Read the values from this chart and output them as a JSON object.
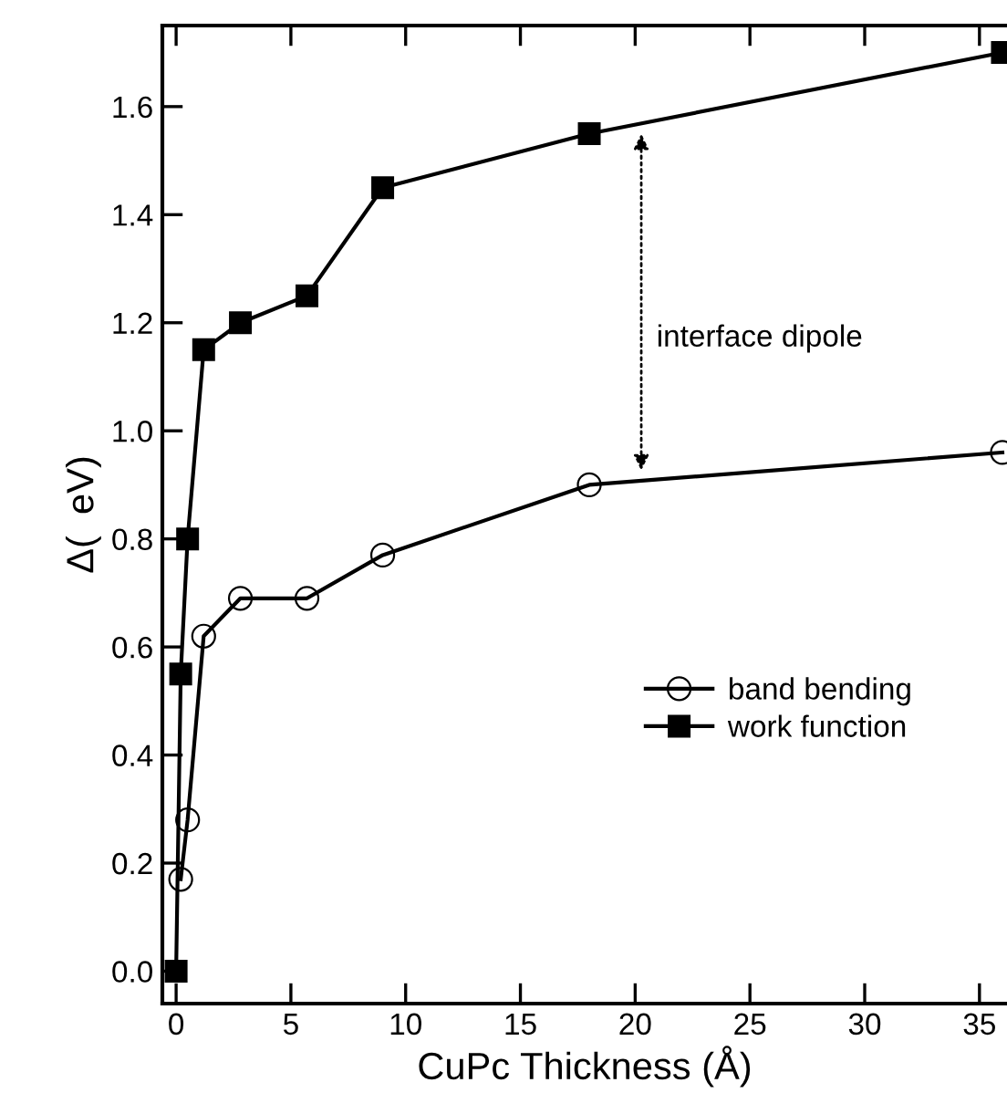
{
  "chart_data": {
    "type": "line",
    "xlabel": "CuPc Thickness (Å)",
    "ylabel": "Δ(  eV)",
    "xlim": [
      -0.6,
      36.2
    ],
    "ylim": [
      -0.06,
      1.75
    ],
    "xticks": [
      0,
      5,
      10,
      15,
      20,
      25,
      30,
      35
    ],
    "yticks": [
      {
        "value": 0,
        "label": "0.0"
      },
      0.2,
      0.4,
      0.6,
      0.8,
      {
        "value": 1,
        "label": "1.0"
      },
      1.2,
      1.4,
      1.6
    ],
    "grid": false,
    "legend": "right",
    "series": [
      {
        "name": "band bending",
        "color": "#000000",
        "marker": "circle",
        "x": [
          0.2,
          0.5,
          1.2,
          2.8,
          5.7,
          9,
          18,
          36
        ],
        "values": [
          0.17,
          0.28,
          0.62,
          0.69,
          0.69,
          0.77,
          0.9,
          0.96
        ]
      },
      {
        "name": "work function",
        "color": "#000000",
        "marker": "square",
        "x": [
          0,
          0.2,
          0.5,
          1.2,
          2.8,
          5.7,
          9,
          18,
          36
        ],
        "values": [
          0.0,
          0.55,
          0.8,
          1.15,
          1.2,
          1.25,
          1.45,
          1.55,
          1.7
        ]
      }
    ],
    "annotations": [
      "interface dipole"
    ]
  }
}
